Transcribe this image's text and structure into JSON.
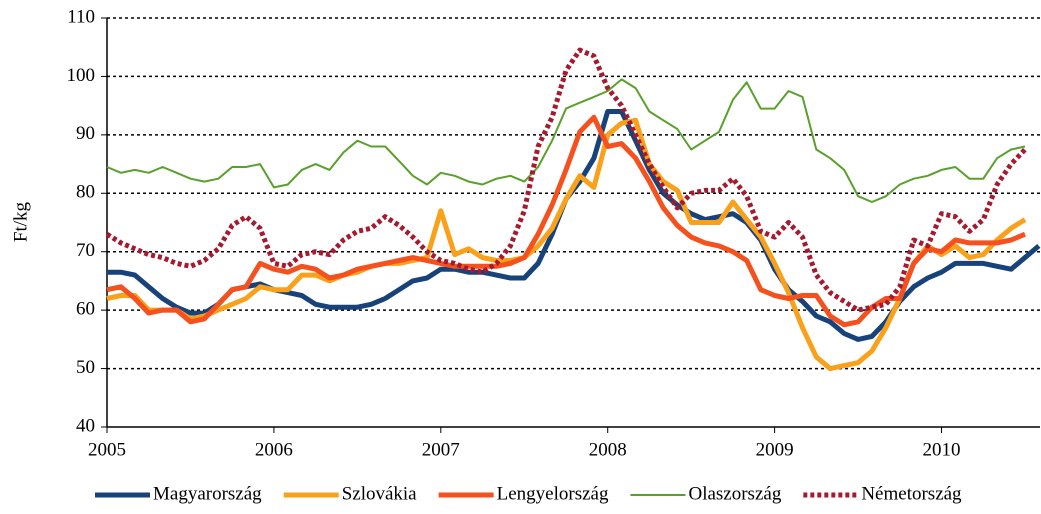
{
  "chart_data": {
    "type": "line",
    "y_label": "Ft/kg",
    "x": [
      2005,
      2005.083,
      2005.167,
      2005.25,
      2005.333,
      2005.417,
      2005.5,
      2005.583,
      2005.667,
      2005.75,
      2005.833,
      2005.917,
      2006,
      2006.083,
      2006.167,
      2006.25,
      2006.333,
      2006.417,
      2006.5,
      2006.583,
      2006.667,
      2006.75,
      2006.833,
      2006.917,
      2007,
      2007.083,
      2007.167,
      2007.25,
      2007.333,
      2007.417,
      2007.5,
      2007.583,
      2007.667,
      2007.75,
      2007.833,
      2007.917,
      2008,
      2008.083,
      2008.167,
      2008.25,
      2008.333,
      2008.417,
      2008.5,
      2008.583,
      2008.667,
      2008.75,
      2008.833,
      2008.917,
      2009,
      2009.083,
      2009.167,
      2009.25,
      2009.333,
      2009.417,
      2009.5,
      2009.583,
      2009.667,
      2009.75,
      2009.833,
      2009.917,
      2010,
      2010.083,
      2010.167,
      2010.25,
      2010.333,
      2010.417,
      2010.5,
      2010.583
    ],
    "series": [
      {
        "name": "Magyarország",
        "color": "#17427a",
        "width": 5,
        "line_style": "solid",
        "values": [
          66.5,
          66.5,
          66,
          64,
          62,
          60.5,
          59.5,
          59.5,
          61,
          63.5,
          64,
          64.5,
          63.5,
          63,
          62.5,
          61,
          60.5,
          60.5,
          60.5,
          61,
          62,
          63.5,
          65,
          65.5,
          67,
          67,
          66.5,
          66.5,
          66,
          65.5,
          65.5,
          68,
          73,
          79,
          82,
          86,
          94,
          94,
          89,
          84,
          80,
          78,
          76.5,
          75.5,
          76,
          76.5,
          75,
          72,
          67,
          63.5,
          61.5,
          59,
          58,
          56,
          55,
          55.5,
          58,
          61.5,
          64,
          65.5,
          66.5,
          68,
          68,
          68,
          67.5,
          67,
          69,
          71
        ]
      },
      {
        "name": "Szlovákia",
        "color": "#f9a11b",
        "width": 5,
        "line_style": "solid",
        "values": [
          62,
          62.5,
          62.5,
          60,
          60,
          60,
          58.5,
          59,
          60,
          61,
          62,
          64,
          63.5,
          63.5,
          66,
          66,
          65,
          66,
          66.5,
          67.5,
          68,
          68,
          68.5,
          69,
          77,
          69.5,
          70.5,
          69,
          68.5,
          68.5,
          69,
          71,
          74,
          79,
          83,
          81,
          90,
          92,
          92.5,
          85,
          82,
          80.5,
          75,
          75,
          75,
          78.5,
          75.5,
          72.5,
          68,
          63,
          57,
          52,
          50,
          50.5,
          51,
          53,
          57,
          62,
          68,
          71,
          69.5,
          71,
          69,
          69.5,
          72,
          74,
          75.5,
          null
        ]
      },
      {
        "name": "Lengyelország",
        "color": "#f4511e",
        "width": 5,
        "line_style": "solid",
        "values": [
          63.5,
          64,
          62,
          59.5,
          60,
          60,
          58,
          58.5,
          61,
          63.5,
          64,
          68,
          67,
          66.5,
          67.5,
          67,
          65.5,
          66,
          67,
          67.5,
          68,
          68.5,
          69,
          68.5,
          68,
          67.5,
          67.5,
          67.5,
          67.5,
          68,
          69,
          73,
          78,
          84,
          90.5,
          93,
          88,
          88.5,
          86,
          82,
          77.5,
          74.5,
          72.5,
          71.5,
          71,
          70,
          68.5,
          63.5,
          62.5,
          62,
          62.5,
          62.5,
          59,
          57.5,
          58,
          60.5,
          62,
          62,
          68,
          70.5,
          70,
          72,
          71.5,
          71.5,
          71.5,
          72,
          73,
          null
        ]
      },
      {
        "name": "Olaszország",
        "color": "#5aa02c",
        "width": 2,
        "line_style": "solid",
        "values": [
          84.5,
          83.5,
          84,
          83.5,
          84.5,
          83.5,
          82.5,
          82,
          82.5,
          84.5,
          84.5,
          85,
          81,
          81.5,
          84,
          85,
          84,
          87,
          89,
          88,
          88,
          85.5,
          83,
          81.5,
          83.5,
          83,
          82,
          81.5,
          82.5,
          83,
          82,
          84.5,
          89,
          94.5,
          95.5,
          96.5,
          97.5,
          99.5,
          98,
          94,
          92.5,
          91,
          87.5,
          89,
          90.5,
          96,
          99,
          94.5,
          94.5,
          97.5,
          96.5,
          87.5,
          86,
          84,
          79.5,
          78.5,
          79.5,
          81.5,
          82.5,
          83,
          84,
          84.5,
          82.5,
          82.5,
          86,
          87.5,
          88,
          null
        ]
      },
      {
        "name": "Németország",
        "color": "#a6192e",
        "width": 5,
        "line_style": "dotted",
        "values": [
          73,
          71.5,
          70.5,
          69.5,
          69,
          68,
          67.5,
          68.5,
          70.5,
          74.5,
          76,
          74,
          68,
          67.5,
          69.5,
          70,
          69.5,
          72,
          73.5,
          74,
          76,
          74.5,
          72.5,
          70,
          68.5,
          68,
          67,
          66.5,
          68,
          71,
          77,
          88,
          93,
          101,
          104.5,
          103.5,
          98,
          95,
          90,
          85,
          81,
          77.5,
          80,
          80.5,
          80.5,
          82.5,
          79.5,
          73.5,
          72.5,
          75,
          72.5,
          66,
          63,
          61.5,
          60,
          60.5,
          61,
          64,
          72,
          71,
          76.5,
          76,
          73.5,
          75.5,
          81.5,
          85,
          87.5,
          null
        ]
      }
    ],
    "xlim": [
      2005,
      2010.59
    ],
    "xticks": [
      2005,
      2006,
      2007,
      2008,
      2009,
      2010
    ],
    "ylim": [
      40,
      110
    ],
    "yticks": [
      40,
      50,
      60,
      70,
      80,
      90,
      100,
      110
    ],
    "grid": true,
    "legend": "bottom"
  }
}
